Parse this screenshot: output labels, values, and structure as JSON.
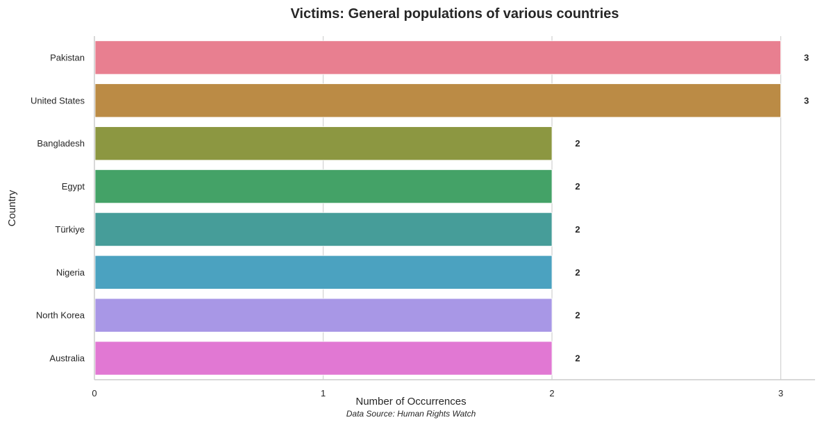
{
  "chart_data": {
    "type": "bar",
    "orientation": "horizontal",
    "title": "Victims: General populations of various countries",
    "xlabel": "Number of Occurrences",
    "ylabel": "Country",
    "source": "Data Source: Human Rights Watch",
    "categories": [
      "Pakistan",
      "United States",
      "Bangladesh",
      "Egypt",
      "Türkiye",
      "Nigeria",
      "North Korea",
      "Australia"
    ],
    "values": [
      3,
      3,
      2,
      2,
      2,
      2,
      2,
      2
    ],
    "data_labels": [
      "3",
      "3",
      "2",
      "2",
      "2",
      "2",
      "2",
      "2"
    ],
    "colors": [
      "#e87f90",
      "#bb8b45",
      "#8c9741",
      "#44a267",
      "#469d99",
      "#4ba2c0",
      "#a897e6",
      "#e178d3"
    ],
    "xticks": [
      0,
      1,
      2,
      3
    ],
    "xtick_labels": [
      "0",
      "1",
      "2",
      "3"
    ],
    "xlim": [
      0,
      3.15
    ],
    "grid": "vertical",
    "legend": "none"
  }
}
